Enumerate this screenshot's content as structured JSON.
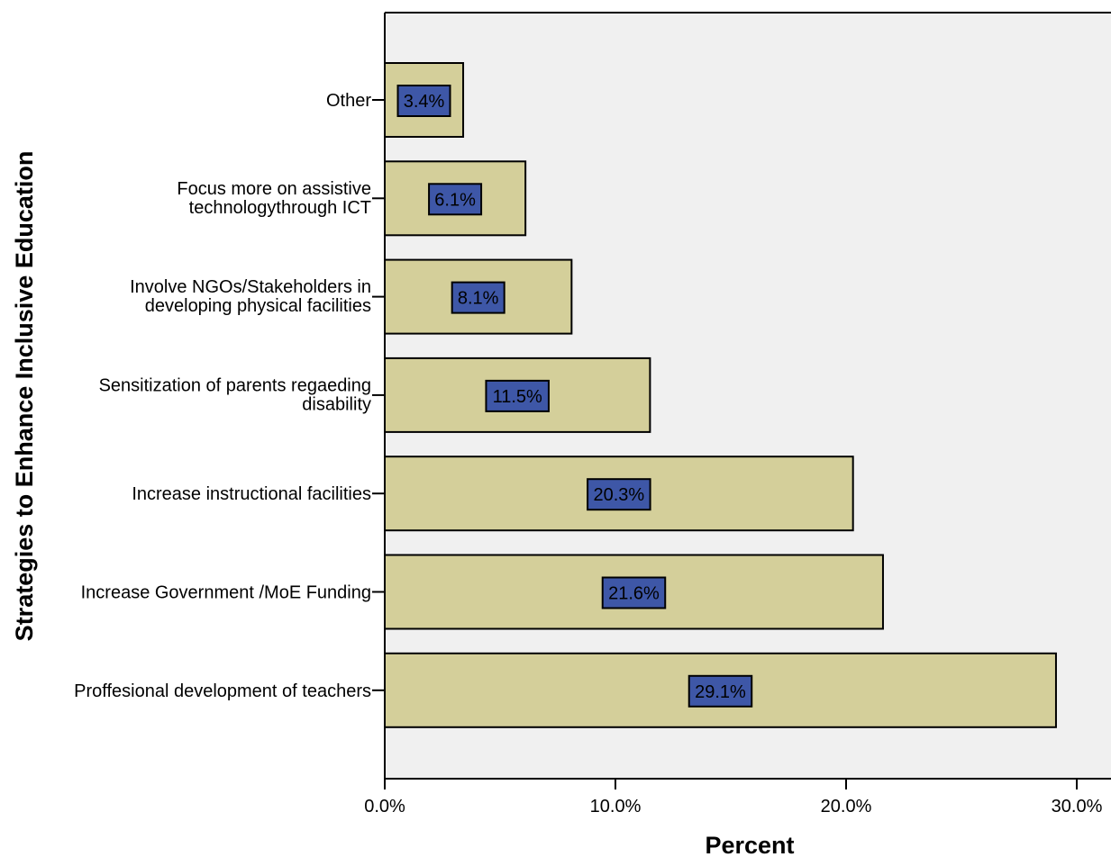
{
  "chart_data": {
    "type": "bar",
    "orientation": "horizontal",
    "xlabel": "Percent",
    "ylabel": "Strategies to Enhance Inclusive Education",
    "xlim": [
      0,
      30
    ],
    "xticks": [
      "0.0%",
      "10.0%",
      "20.0%",
      "30.0%"
    ],
    "categories": [
      [
        "Other"
      ],
      [
        "Focus more on assistive",
        "technologythrough ICT"
      ],
      [
        "Involve NGOs/Stakeholders in",
        "developing physical facilities"
      ],
      [
        "Sensitization of parents regaeding",
        "disability"
      ],
      [
        "Increase instructional  facilities"
      ],
      [
        "Increase Government /MoE Funding"
      ],
      [
        "Proffesional development of teachers"
      ]
    ],
    "values": [
      3.4,
      6.1,
      8.1,
      11.5,
      20.3,
      21.6,
      29.1
    ],
    "data_labels": [
      "3.4%",
      "6.1%",
      "8.1%",
      "11.5%",
      "20.3%",
      "21.6%",
      "29.1%"
    ],
    "grid": false,
    "colors": {
      "bar_fill": "#d4cf9a",
      "label_fill": "#3e57a7",
      "plot_bg": "#f0f0f0",
      "stroke": "#000000"
    }
  }
}
